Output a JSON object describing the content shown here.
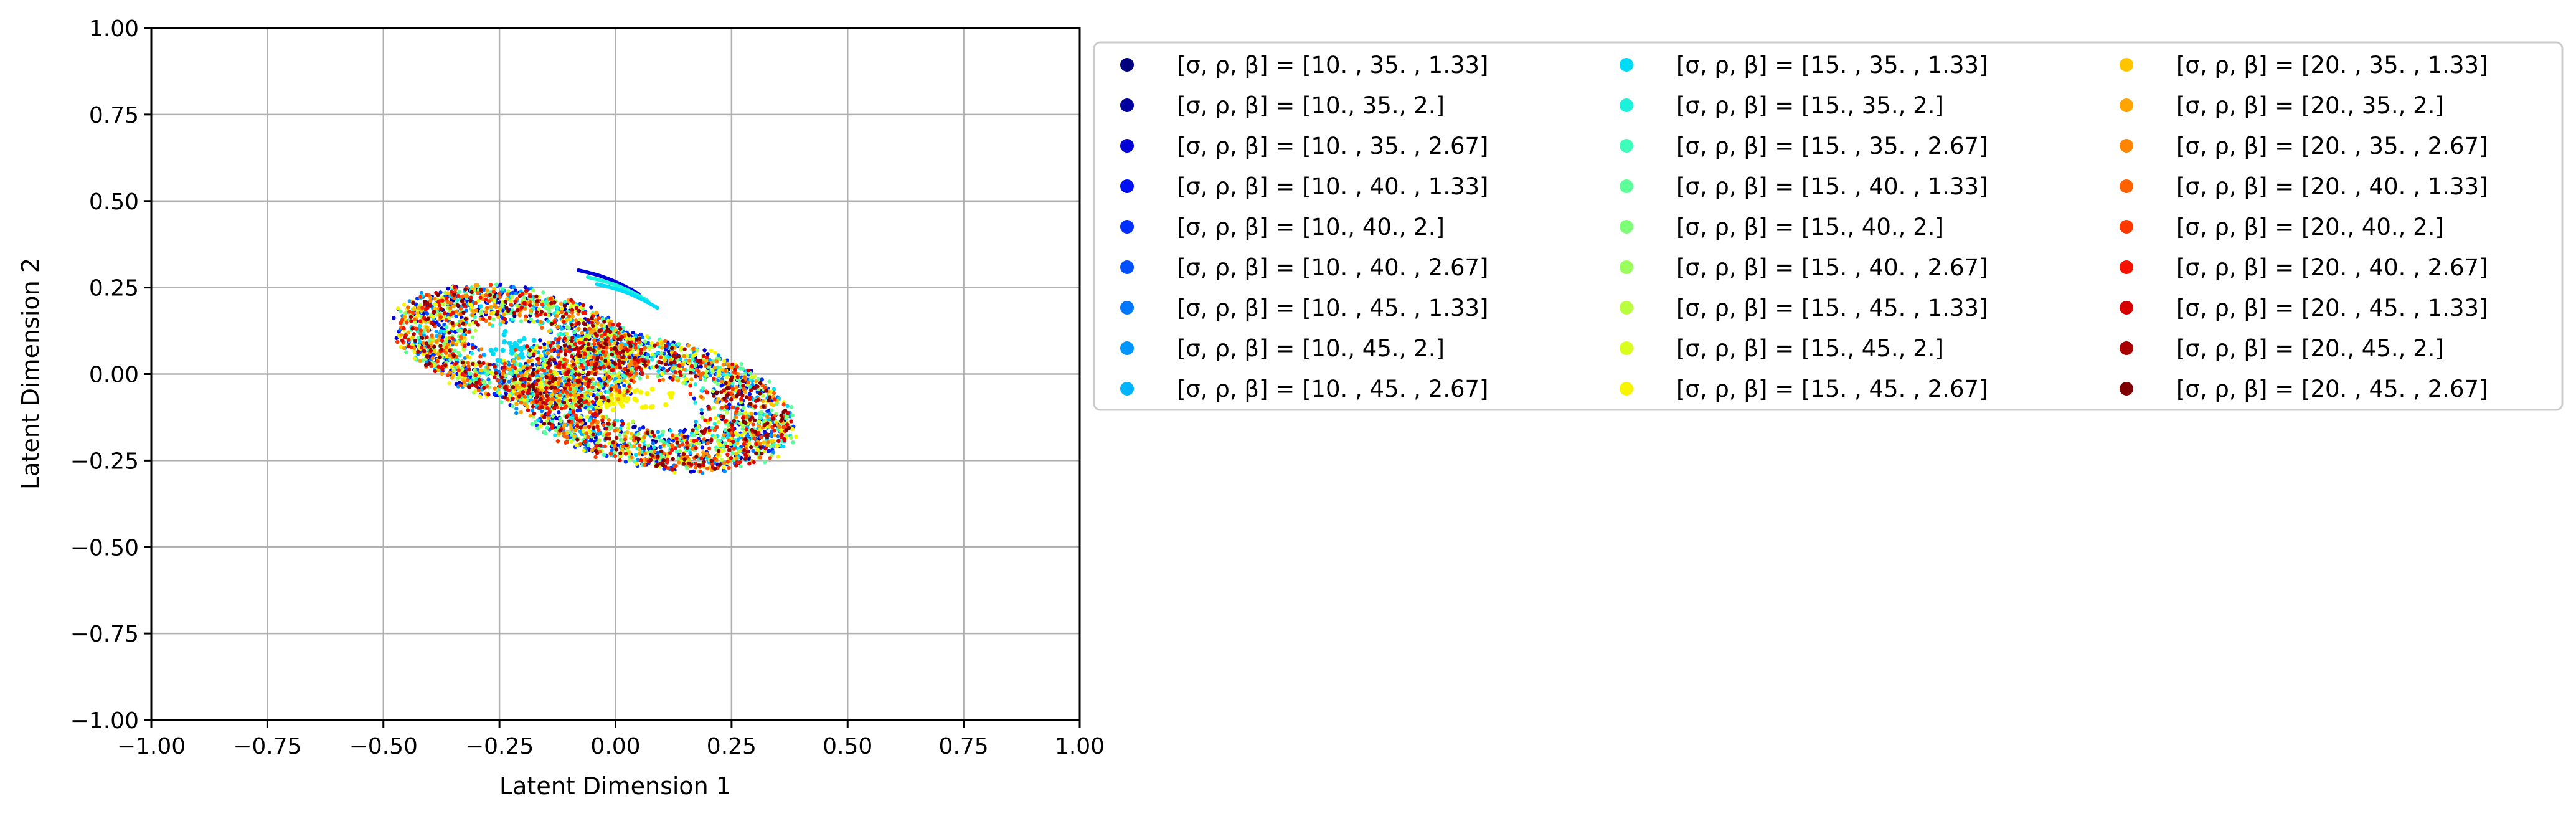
{
  "chart_data": {
    "type": "scatter",
    "title": "",
    "xlabel": "Latent Dimension 1",
    "ylabel": "Latent Dimension 2",
    "xlim": [
      -1.0,
      1.0
    ],
    "ylim": [
      -1.0,
      1.0
    ],
    "xticks": [
      "−1.00",
      "−0.75",
      "−0.50",
      "−0.25",
      "0.00",
      "0.25",
      "0.50",
      "0.75",
      "1.00"
    ],
    "yticks": [
      "−1.00",
      "−0.75",
      "−0.50",
      "−0.25",
      "0.00",
      "0.25",
      "0.50",
      "0.75",
      "1.00"
    ],
    "grid": true,
    "legend_position": "outside-right",
    "legend_columns": 3,
    "series": [
      {
        "name": "[σ, ρ, β] = [10.  , 35.  ,  1.33]",
        "color": "#00007f"
      },
      {
        "name": "[σ, ρ, β] = [10., 35.,  2.]",
        "color": "#00009f"
      },
      {
        "name": "[σ, ρ, β] = [10.  , 35.  ,  2.67]",
        "color": "#0000d6"
      },
      {
        "name": "[σ, ρ, β] = [10.  , 40.  ,  1.33]",
        "color": "#0010f5"
      },
      {
        "name": "[σ, ρ, β] = [10., 40.,  2.]",
        "color": "#0030ff"
      },
      {
        "name": "[σ, ρ, β] = [10.  , 40.  ,  2.67]",
        "color": "#0050ff"
      },
      {
        "name": "[σ, ρ, β] = [10.  , 45.  ,  1.33]",
        "color": "#0078ff"
      },
      {
        "name": "[σ, ρ, β] = [10., 45.,  2.]",
        "color": "#0094ff"
      },
      {
        "name": "[σ, ρ, β] = [10.  , 45.  ,  2.67]",
        "color": "#00b4ff"
      },
      {
        "name": "[σ, ρ, β] = [15.  , 35.  ,  1.33]",
        "color": "#00dcf8"
      },
      {
        "name": "[σ, ρ, β] = [15., 35.,  2.]",
        "color": "#1cf2db"
      },
      {
        "name": "[σ, ρ, β] = [15.  , 35.  ,  2.67]",
        "color": "#3dffba"
      },
      {
        "name": "[σ, ρ, β] = [15.  , 40.  ,  1.33]",
        "color": "#5dff9a"
      },
      {
        "name": "[σ, ρ, β] = [15., 40.,  2.]",
        "color": "#7dff7a"
      },
      {
        "name": "[σ, ρ, β] = [15.  , 40.  ,  2.67]",
        "color": "#9aff5d"
      },
      {
        "name": "[σ, ρ, β] = [15.  , 45.  ,  1.33]",
        "color": "#baff3d"
      },
      {
        "name": "[σ, ρ, β] = [15., 45.,  2.]",
        "color": "#dbff1c"
      },
      {
        "name": "[σ, ρ, β] = [15.  , 45.  ,  2.67]",
        "color": "#f8f500"
      },
      {
        "name": "[σ, ρ, β] = [20.  , 35.  ,  1.33]",
        "color": "#ffc400"
      },
      {
        "name": "[σ, ρ, β] = [20., 35.,  2.]",
        "color": "#ffa400"
      },
      {
        "name": "[σ, ρ, β] = [20.  , 35.  ,  2.67]",
        "color": "#ff8400"
      },
      {
        "name": "[σ, ρ, β] = [20.  , 40.  ,  1.33]",
        "color": "#ff6000"
      },
      {
        "name": "[σ, ρ, β] = [20., 40.,  2.]",
        "color": "#ff3800"
      },
      {
        "name": "[σ, ρ, β] = [20.  , 40.  ,  2.67]",
        "color": "#f51000"
      },
      {
        "name": "[σ, ρ, β] = [20.  , 45.  ,  1.33]",
        "color": "#d60000"
      },
      {
        "name": "[σ, ρ, β] = [20., 45.,  2.]",
        "color": "#a80000"
      },
      {
        "name": "[σ, ρ, β] = [20.  , 45.  ,  2.67]",
        "color": "#7f0000"
      }
    ],
    "point_cloud": {
      "description_note": "",
      "center": [
        0.0,
        0.0
      ],
      "left_wing_center": [
        -0.22,
        0.08
      ],
      "right_wing_center": [
        0.04,
        -0.08
      ],
      "extent_x": [
        -0.5,
        0.47
      ],
      "extent_y": [
        -0.42,
        0.37
      ]
    }
  }
}
